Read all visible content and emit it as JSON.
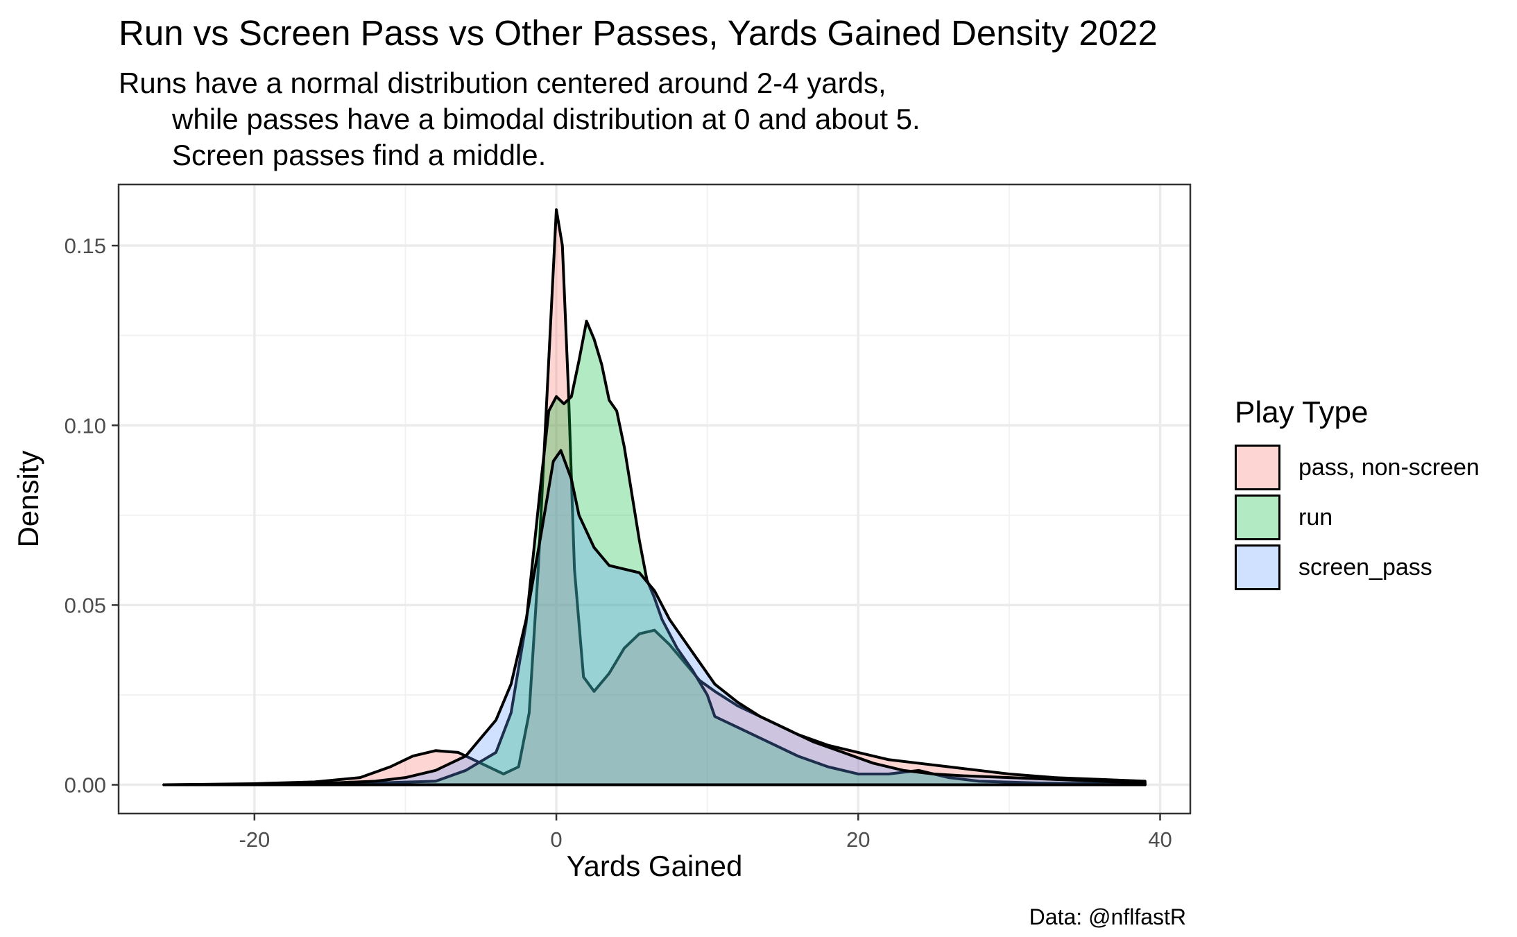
{
  "header": {
    "title": "Run vs Screen Pass vs Other Passes, Yards Gained Density 2022",
    "subtitle_lines": [
      "Runs have a normal distribution centered around 2-4 yards,",
      "while passes have a bimodal distribution at 0 and about 5.",
      "Screen passes find a middle."
    ]
  },
  "caption": "Data: @nflfastR",
  "chart_data": {
    "type": "area",
    "xlabel": "Yards Gained",
    "ylabel": "Density",
    "xlim": [
      -29,
      42
    ],
    "ylim": [
      -0.008,
      0.167
    ],
    "x_ticks": [
      -20,
      0,
      20,
      40
    ],
    "x_tick_labels": [
      "-20",
      "0",
      "20",
      "40"
    ],
    "y_ticks": [
      0.0,
      0.05,
      0.1,
      0.15
    ],
    "y_tick_labels": [
      "0.00",
      "0.05",
      "0.10",
      "0.15"
    ],
    "grid": true,
    "legend": {
      "title": "Play Type",
      "position": "right"
    },
    "series": [
      {
        "name": "pass, non-screen",
        "fill": "#F8766D",
        "points": [
          [
            -26,
            0
          ],
          [
            -20,
            0.0003
          ],
          [
            -16,
            0.0008
          ],
          [
            -13,
            0.002
          ],
          [
            -11,
            0.005
          ],
          [
            -9.5,
            0.008
          ],
          [
            -8,
            0.0095
          ],
          [
            -6.5,
            0.009
          ],
          [
            -5,
            0.006
          ],
          [
            -3.5,
            0.003
          ],
          [
            -2.5,
            0.005
          ],
          [
            -1.8,
            0.02
          ],
          [
            -1.2,
            0.06
          ],
          [
            -0.6,
            0.11
          ],
          [
            0,
            0.16
          ],
          [
            0.4,
            0.15
          ],
          [
            0.8,
            0.11
          ],
          [
            1.2,
            0.06
          ],
          [
            1.8,
            0.03
          ],
          [
            2.5,
            0.026
          ],
          [
            3.5,
            0.031
          ],
          [
            4.5,
            0.038
          ],
          [
            5.5,
            0.042
          ],
          [
            6.5,
            0.043
          ],
          [
            7.5,
            0.039
          ],
          [
            8.5,
            0.034
          ],
          [
            9.5,
            0.029
          ],
          [
            10.5,
            0.026
          ],
          [
            12,
            0.022
          ],
          [
            14,
            0.018
          ],
          [
            16,
            0.014
          ],
          [
            18,
            0.011
          ],
          [
            20,
            0.009
          ],
          [
            22,
            0.007
          ],
          [
            24,
            0.006
          ],
          [
            26,
            0.005
          ],
          [
            28,
            0.004
          ],
          [
            30,
            0.003
          ],
          [
            33,
            0.002
          ],
          [
            36,
            0.0015
          ],
          [
            39,
            0.001
          ]
        ]
      },
      {
        "name": "run",
        "fill": "#00BA38",
        "points": [
          [
            -26,
            0
          ],
          [
            -18,
            0
          ],
          [
            -12,
            0.0005
          ],
          [
            -8,
            0.001
          ],
          [
            -6,
            0.004
          ],
          [
            -4,
            0.009
          ],
          [
            -3,
            0.02
          ],
          [
            -2,
            0.045
          ],
          [
            -1,
            0.085
          ],
          [
            -0.5,
            0.104
          ],
          [
            0,
            0.108
          ],
          [
            0.5,
            0.106
          ],
          [
            1,
            0.108
          ],
          [
            1.5,
            0.118
          ],
          [
            2,
            0.129
          ],
          [
            2.5,
            0.124
          ],
          [
            3,
            0.117
          ],
          [
            3.5,
            0.107
          ],
          [
            4,
            0.104
          ],
          [
            4.5,
            0.094
          ],
          [
            5,
            0.081
          ],
          [
            5.5,
            0.068
          ],
          [
            6,
            0.057
          ],
          [
            6.5,
            0.052
          ],
          [
            7,
            0.046
          ],
          [
            8,
            0.038
          ],
          [
            9,
            0.032
          ],
          [
            10,
            0.025
          ],
          [
            10.5,
            0.019
          ],
          [
            11,
            0.018
          ],
          [
            12,
            0.016
          ],
          [
            14,
            0.012
          ],
          [
            16,
            0.008
          ],
          [
            18,
            0.005
          ],
          [
            20,
            0.003
          ],
          [
            22,
            0.003
          ],
          [
            24,
            0.004
          ],
          [
            26,
            0.002
          ],
          [
            28,
            0.001
          ],
          [
            32,
            0.0005
          ],
          [
            39,
            0.0002
          ]
        ]
      },
      {
        "name": "screen_pass",
        "fill": "#619CFF",
        "points": [
          [
            -26,
            0
          ],
          [
            -16,
            0.0003
          ],
          [
            -12,
            0.001
          ],
          [
            -10,
            0.002
          ],
          [
            -8,
            0.004
          ],
          [
            -6,
            0.008
          ],
          [
            -4,
            0.018
          ],
          [
            -3,
            0.028
          ],
          [
            -2,
            0.046
          ],
          [
            -1,
            0.07
          ],
          [
            -0.2,
            0.09
          ],
          [
            0.3,
            0.093
          ],
          [
            1,
            0.085
          ],
          [
            1.5,
            0.075
          ],
          [
            2.5,
            0.066
          ],
          [
            3.5,
            0.061
          ],
          [
            4.5,
            0.06
          ],
          [
            5.5,
            0.059
          ],
          [
            6.5,
            0.054
          ],
          [
            7.5,
            0.046
          ],
          [
            8.5,
            0.04
          ],
          [
            9.5,
            0.034
          ],
          [
            10.5,
            0.028
          ],
          [
            12,
            0.023
          ],
          [
            13.5,
            0.019
          ],
          [
            15,
            0.016
          ],
          [
            17,
            0.012
          ],
          [
            19,
            0.009
          ],
          [
            21,
            0.006
          ],
          [
            23,
            0.004
          ],
          [
            25,
            0.003
          ],
          [
            27,
            0.0025
          ],
          [
            30,
            0.002
          ],
          [
            33,
            0.0015
          ],
          [
            36,
            0.001
          ],
          [
            39,
            0.0005
          ]
        ]
      }
    ]
  }
}
